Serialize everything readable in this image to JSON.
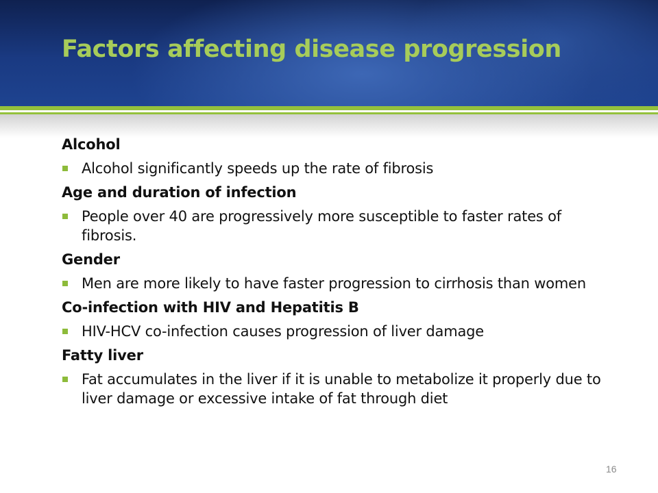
{
  "slide": {
    "title": "Factors affecting disease progression",
    "page_number": "16",
    "colors": {
      "header_background": "#1a3a82",
      "title": "#a7cc5a",
      "accent_green": "#94c13c",
      "bullet": "#8dbb3a",
      "text": "#111111"
    }
  },
  "sections": [
    {
      "heading": "Alcohol",
      "bullets": [
        "Alcohol significantly speeds up the rate of fibrosis"
      ]
    },
    {
      "heading": "Age and duration of infection",
      "bullets": [
        "People over 40 are progressively more susceptible to faster rates of fibrosis."
      ]
    },
    {
      "heading": "Gender",
      "bullets": [
        "Men are more likely to have faster progression to cirrhosis than women"
      ]
    },
    {
      "heading": "Co-infection with HIV and Hepatitis B",
      "bullets": [
        "HIV-HCV co-infection causes progression of liver damage"
      ]
    },
    {
      "heading": "Fatty liver",
      "bullets": [
        "Fat accumulates in the liver if it is unable to metabolize it properly due to liver damage or excessive intake of fat through diet"
      ]
    }
  ]
}
